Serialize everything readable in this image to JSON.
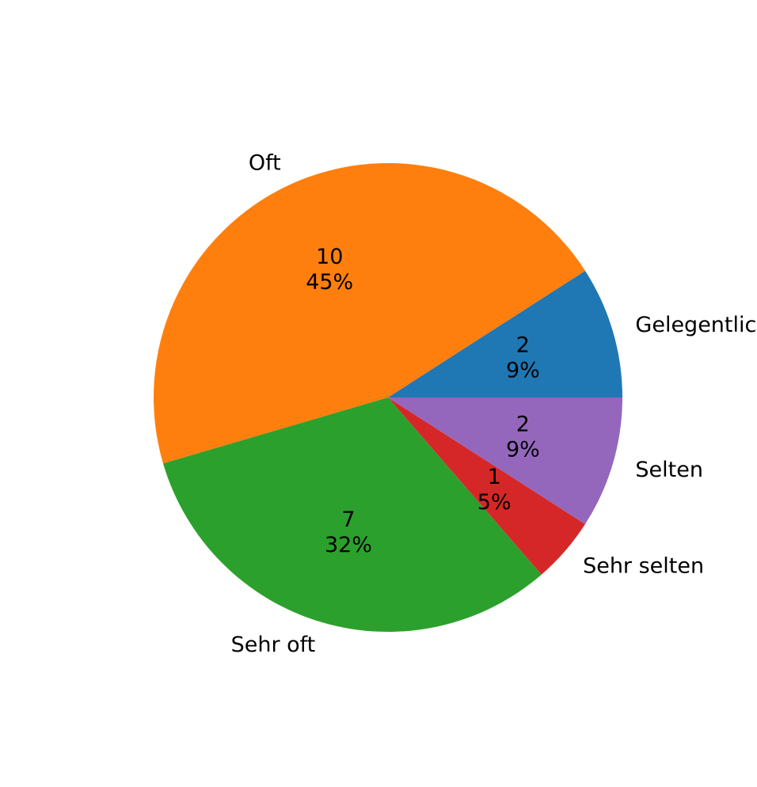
{
  "chart_data": {
    "type": "pie",
    "title": "",
    "start_angle_deg": 0,
    "direction": "counterclockwise",
    "legend": "none",
    "slices": [
      {
        "label": "Gelegentlich",
        "value": 2,
        "percent_label": "9%",
        "count_label": "2",
        "color": "#1f77b4"
      },
      {
        "label": "Oft",
        "value": 10,
        "percent_label": "45%",
        "count_label": "10",
        "color": "#ff7f0e"
      },
      {
        "label": "Sehr oft",
        "value": 7,
        "percent_label": "32%",
        "count_label": "7",
        "color": "#2ca02c"
      },
      {
        "label": "Sehr selten",
        "value": 1,
        "percent_label": "5%",
        "count_label": "1",
        "color": "#d62728"
      },
      {
        "label": "Selten",
        "value": 2,
        "percent_label": "9%",
        "count_label": "2",
        "color": "#9467bd"
      }
    ]
  }
}
